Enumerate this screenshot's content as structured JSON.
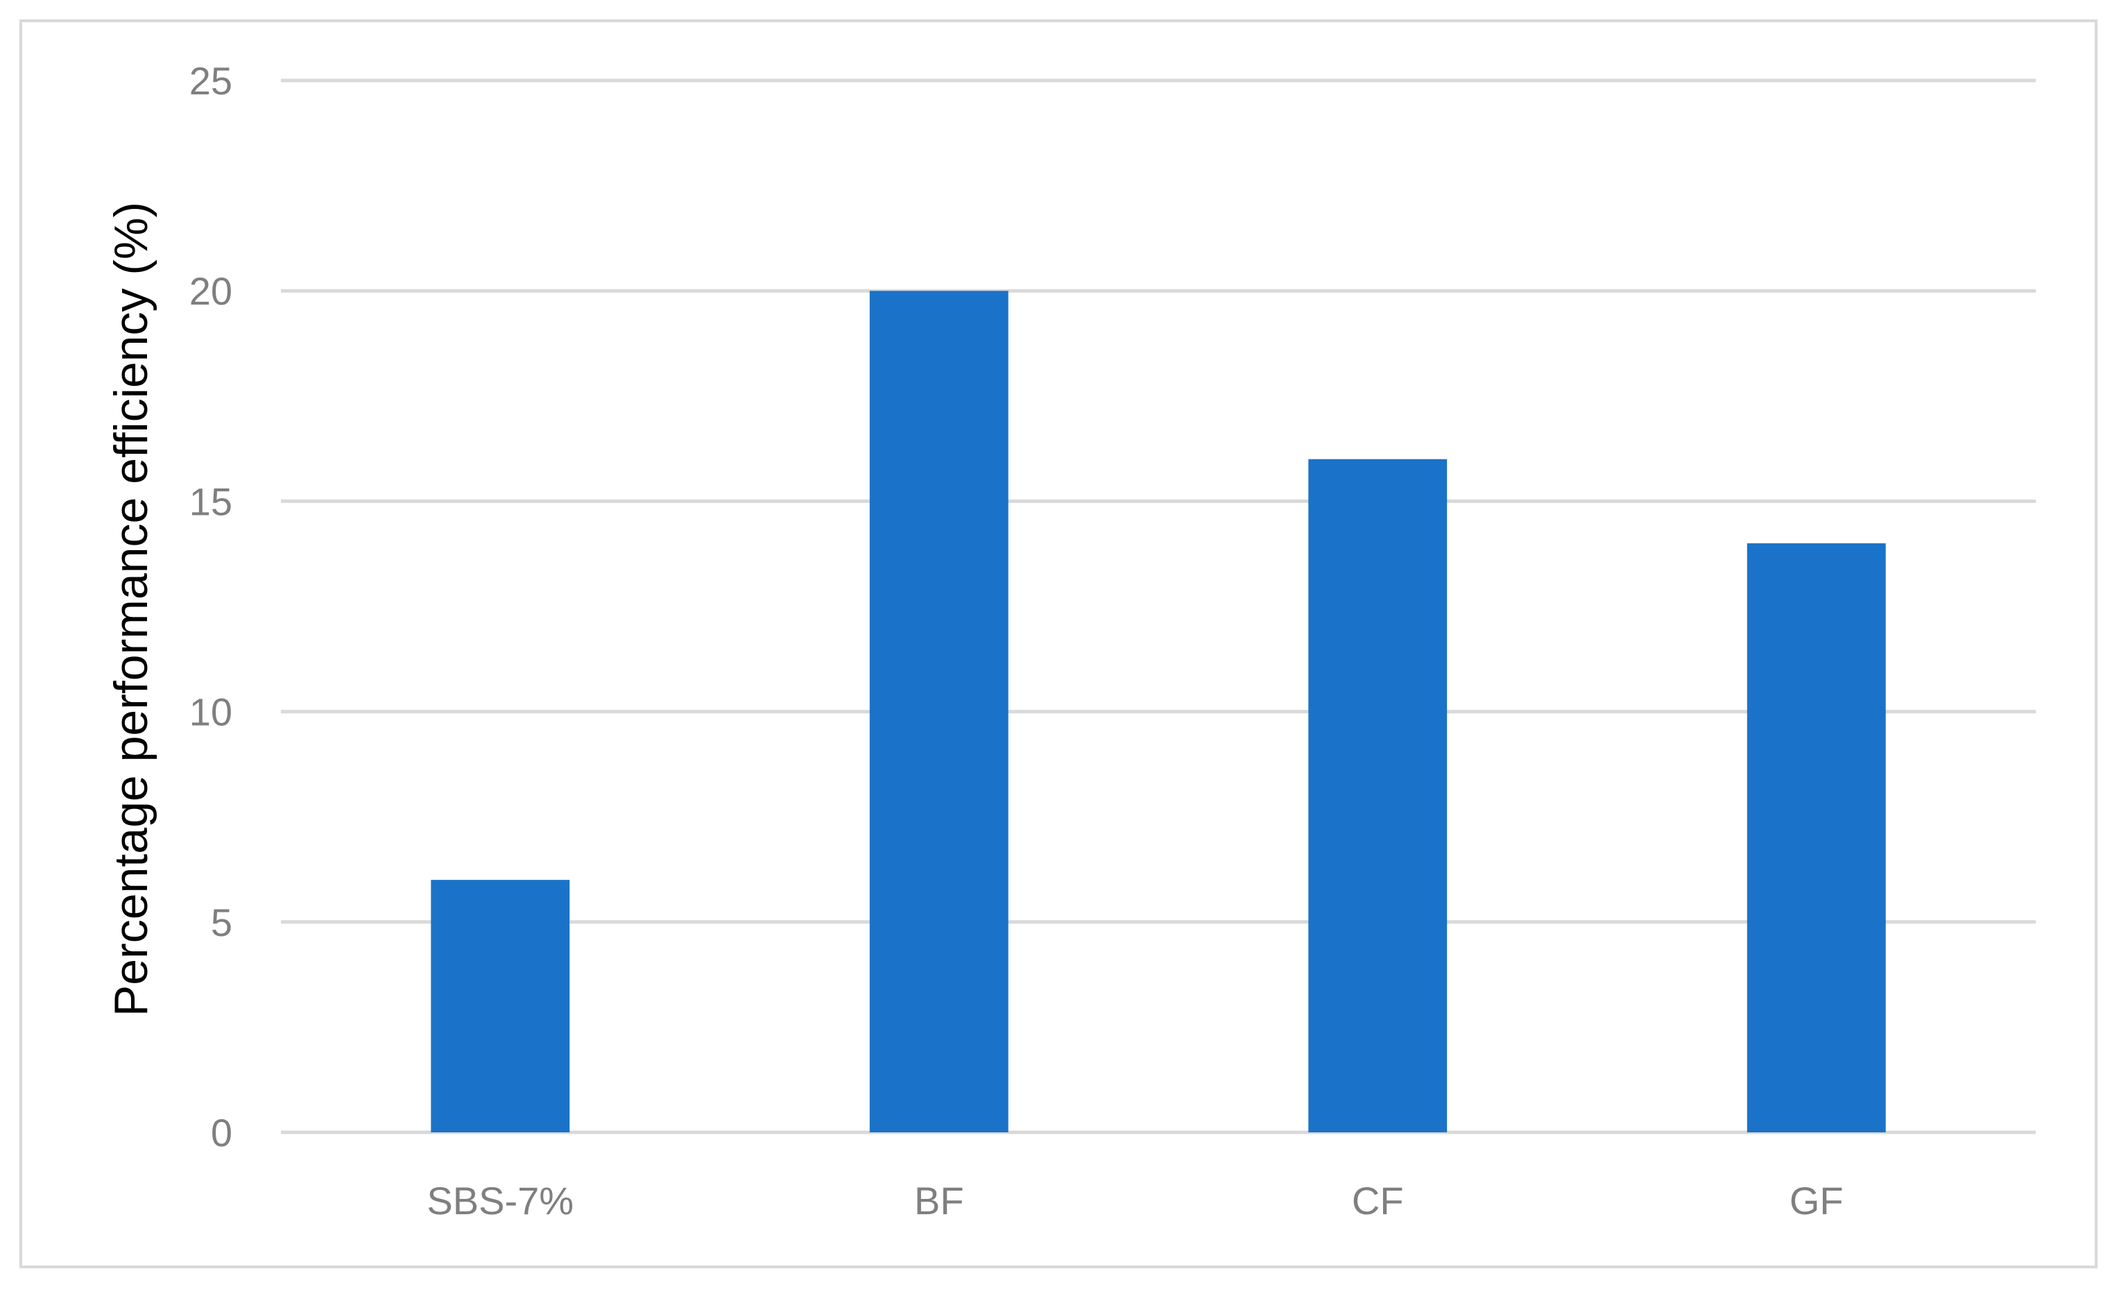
{
  "chart_data": {
    "type": "bar",
    "title": "",
    "xlabel": "",
    "ylabel": "Percentage performance efficiency (%)",
    "categories": [
      "SBS-7%",
      "BF",
      "CF",
      "GF"
    ],
    "values": [
      6,
      20,
      16,
      14
    ],
    "ylim": [
      0,
      25
    ],
    "yticks": [
      0,
      5,
      10,
      15,
      20,
      25
    ],
    "grid": true,
    "legend": "none",
    "bar_color": "#1a73c8"
  }
}
